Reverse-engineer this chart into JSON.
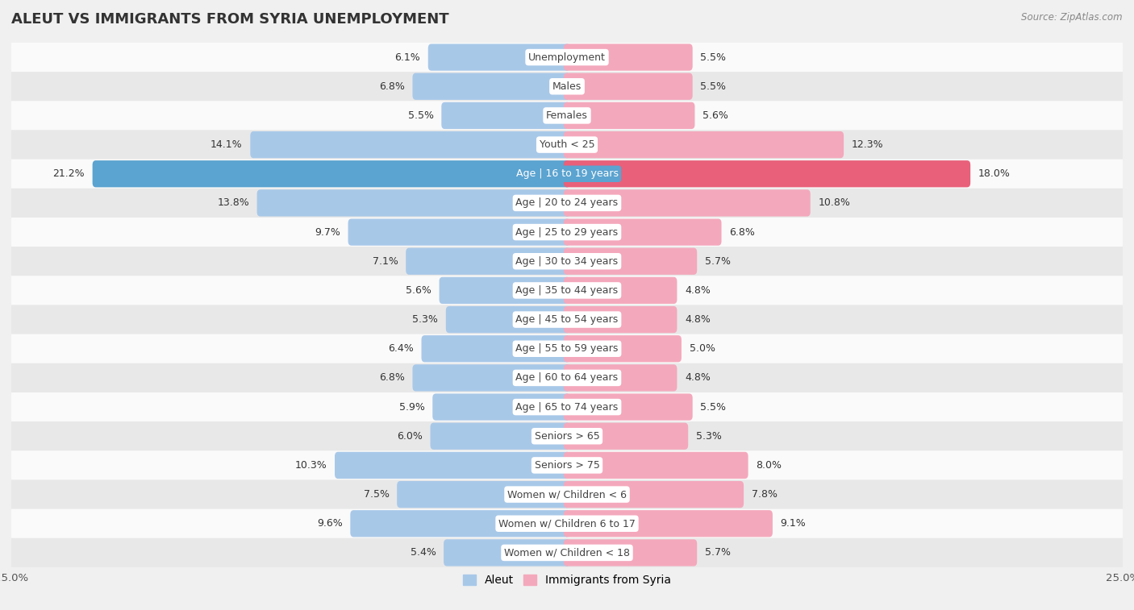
{
  "title": "ALEUT VS IMMIGRANTS FROM SYRIA UNEMPLOYMENT",
  "source": "Source: ZipAtlas.com",
  "categories": [
    "Unemployment",
    "Males",
    "Females",
    "Youth < 25",
    "Age | 16 to 19 years",
    "Age | 20 to 24 years",
    "Age | 25 to 29 years",
    "Age | 30 to 34 years",
    "Age | 35 to 44 years",
    "Age | 45 to 54 years",
    "Age | 55 to 59 years",
    "Age | 60 to 64 years",
    "Age | 65 to 74 years",
    "Seniors > 65",
    "Seniors > 75",
    "Women w/ Children < 6",
    "Women w/ Children 6 to 17",
    "Women w/ Children < 18"
  ],
  "aleut_values": [
    6.1,
    6.8,
    5.5,
    14.1,
    21.2,
    13.8,
    9.7,
    7.1,
    5.6,
    5.3,
    6.4,
    6.8,
    5.9,
    6.0,
    10.3,
    7.5,
    9.6,
    5.4
  ],
  "syria_values": [
    5.5,
    5.5,
    5.6,
    12.3,
    18.0,
    10.8,
    6.8,
    5.7,
    4.8,
    4.8,
    5.0,
    4.8,
    5.5,
    5.3,
    8.0,
    7.8,
    9.1,
    5.7
  ],
  "aleut_color": "#a8c8e8",
  "syria_color": "#f4a8bc",
  "aleut_highlight_color": "#5ba3d0",
  "syria_highlight_color": "#e8607a",
  "highlight_row": 4,
  "xlim": 25.0,
  "bar_height": 0.62,
  "bg_color": "#f0f0f0",
  "row_bg_even": "#fafafa",
  "row_bg_odd": "#e8e8e8",
  "label_fontsize": 9.0,
  "value_fontsize": 9.0,
  "title_fontsize": 13,
  "legend_fontsize": 10
}
